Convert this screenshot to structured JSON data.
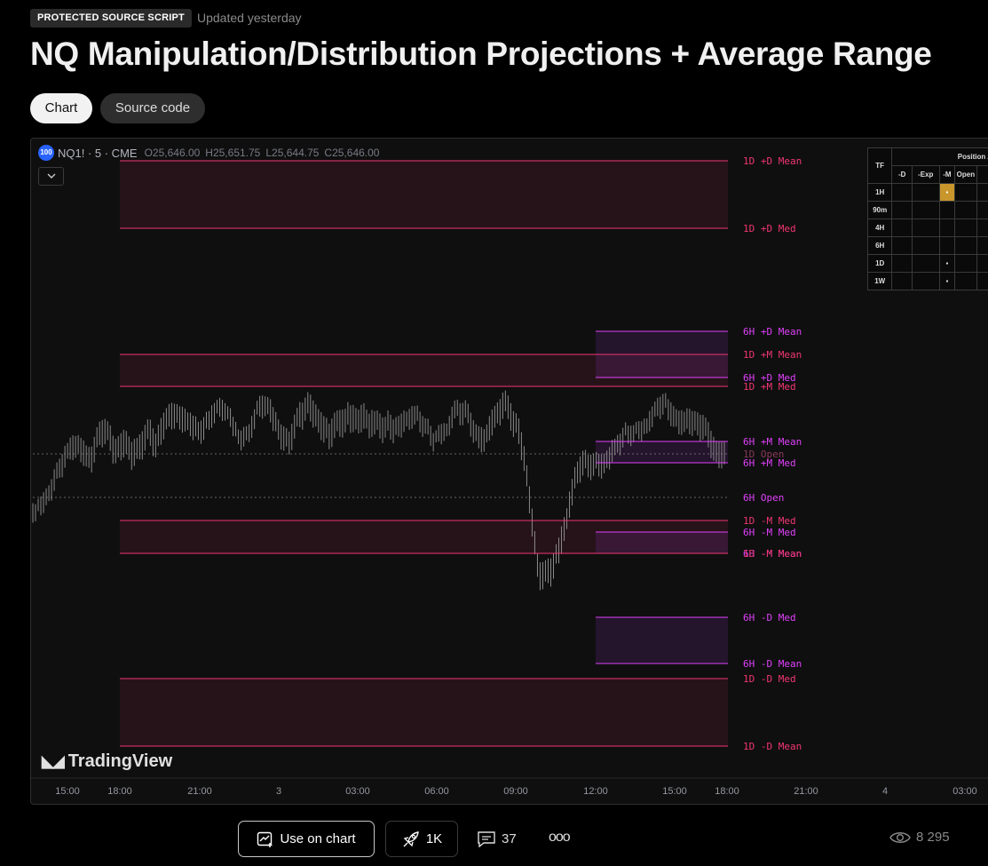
{
  "header": {
    "badge": "PROTECTED SOURCE SCRIPT",
    "updated": "Updated yesterday",
    "title": "NQ Manipulation/Distribution Projections + Average Range"
  },
  "tabs": [
    {
      "label": "Chart",
      "active": true
    },
    {
      "label": "Source code",
      "active": false
    }
  ],
  "chart": {
    "symbol_badge": "100",
    "symbol": "NQ1! · 5 · CME",
    "ohlc": {
      "o": "O25,646.00",
      "h": "H25,651.75",
      "l": "L25,644.75",
      "c": "C25,646.00"
    },
    "collapse_icon": "chevron-down-icon",
    "logo_text": "TradingView",
    "colors": {
      "daily": "#f23672",
      "sixhour": "#e040fb",
      "open_line": "#9e9e9e",
      "highlight": "#f5d442"
    }
  },
  "chart_data": {
    "type": "candlestick",
    "price_scale_visible": false,
    "time_axis": [
      "15:00",
      "18:00",
      "21:00",
      "3",
      "03:00",
      "06:00",
      "09:00",
      "12:00",
      "15:00",
      "18:00",
      "21:00",
      "4",
      "03:00"
    ],
    "levels": [
      {
        "label": "1D +D Mean",
        "group": "1D"
      },
      {
        "label": "1D +D Med",
        "group": "1D"
      },
      {
        "label": "6H +D Mean",
        "group": "6H"
      },
      {
        "label": "1D +M Mean",
        "group": "1D"
      },
      {
        "label": "6H +D Med",
        "group": "6H"
      },
      {
        "label": "1D +M Med",
        "group": "1D"
      },
      {
        "label": "6H +M Mean",
        "group": "6H"
      },
      {
        "label": "1D Open",
        "group": "1D"
      },
      {
        "label": "6H +M Med",
        "group": "6H"
      },
      {
        "label": "6H Open",
        "group": "6H"
      },
      {
        "label": "1D -M Med",
        "group": "1D"
      },
      {
        "label": "6H -M Med",
        "group": "6H"
      },
      {
        "label": "6H -M Mean",
        "group": "6H"
      },
      {
        "label": "1D -M Mean",
        "group": "1D"
      },
      {
        "label": "6H -D Med",
        "group": "6H"
      },
      {
        "label": "6H -D Mean",
        "group": "6H"
      },
      {
        "label": "1D -D Med",
        "group": "1D"
      },
      {
        "label": "1D -D Mean",
        "group": "1D"
      }
    ]
  },
  "table": {
    "headers": [
      "TF",
      "-D",
      "-Exp",
      "-M",
      "Open"
    ],
    "super_header": "Position A",
    "rows": [
      {
        "tf": "1H",
        "marks": [
          "",
          "",
          "▪",
          "",
          ""
        ]
      },
      {
        "tf": "90m",
        "marks": [
          "",
          "",
          "",
          "",
          ""
        ]
      },
      {
        "tf": "4H",
        "marks": [
          "",
          "",
          "",
          "",
          ""
        ]
      },
      {
        "tf": "6H",
        "marks": [
          "",
          "",
          "",
          "",
          ""
        ]
      },
      {
        "tf": "1D",
        "marks": [
          "",
          "",
          "▪",
          "",
          ""
        ]
      },
      {
        "tf": "1W",
        "marks": [
          "",
          "",
          "▪",
          "",
          ""
        ]
      }
    ]
  },
  "footer": {
    "use_on_chart": "Use on chart",
    "boosts": "1K",
    "comments": "37",
    "more": "ooo",
    "views": "8 295"
  }
}
